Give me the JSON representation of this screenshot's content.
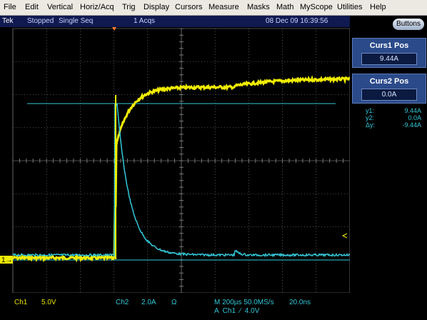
{
  "menu": {
    "items": [
      "File",
      "Edit",
      "Vertical",
      "Horiz/Acq",
      "Trig",
      "Display",
      "Cursors",
      "Measure",
      "Masks",
      "Math",
      "MyScope",
      "Utilities",
      "Help"
    ]
  },
  "status": {
    "brand": "Tek",
    "state": "Stopped",
    "mode": "Single Seq",
    "acqs": "1 Acqs",
    "datetime": "08 Dec 09 16:39:56"
  },
  "panel": {
    "button": "Buttons",
    "cursor1": {
      "label": "Curs1 Pos",
      "value": "9.44A"
    },
    "cursor2": {
      "label": "Curs2 Pos",
      "value": "0.0A"
    },
    "readout": [
      {
        "name": "y1:",
        "value": "9.44A"
      },
      {
        "name": "y2:",
        "value": "0.0A"
      },
      {
        "name": "Δy:",
        "value": "-9.44A"
      }
    ]
  },
  "screen": {
    "ch1_marker": "1→"
  },
  "footer": {
    "ch1": "Ch1",
    "ch1_scale": "5.0V",
    "ch2": "Ch2",
    "ch2_scale": "2.0A",
    "ch2_coupling": "Ω",
    "timebase": "M 200µs 50.0MS/s",
    "resolution": "20.0ns",
    "trigger": "A  Ch1  ⁄  4.0V"
  }
}
